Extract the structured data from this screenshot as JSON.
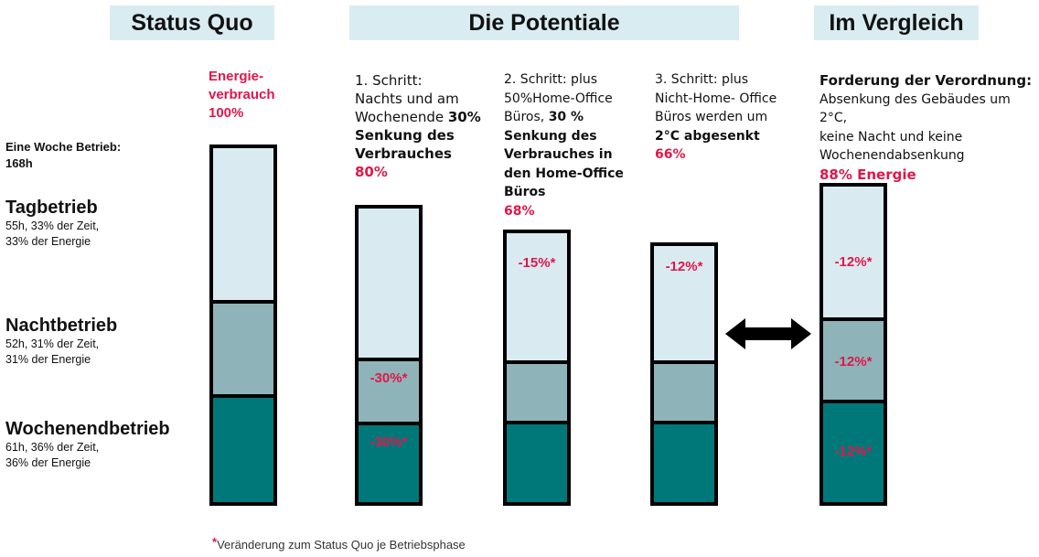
{
  "headers": {
    "status_quo": "Status Quo",
    "potentiale": "Die Potentiale",
    "vergleich": "Im Vergleich"
  },
  "left": {
    "woche_line1": "Eine Woche Betrieb:",
    "woche_line2": "168h",
    "tag_title": "Tagbetrieb",
    "tag_l1": "55h, 33% der Zeit,",
    "tag_l2": "33% der Energie",
    "nacht_title": "Nachtbetrieb",
    "nacht_l1": "52h, 31% der Zeit,",
    "nacht_l2": "31% der Energie",
    "we_title": "Wochenendbetrieb",
    "we_l1": "61h, 36% der Zeit,",
    "we_l2": "36% der Energie"
  },
  "col0": {
    "l1": "Energie-",
    "l2": "verbrauch",
    "l3": "100%"
  },
  "col1": {
    "l1": "1. Schritt:",
    "l2": "Nachts und am",
    "l3a": "Wochenende ",
    "l3b": "30%",
    "l4": "Senkung des",
    "l5": "Verbrauches",
    "l6": "80%"
  },
  "col2": {
    "l1": "2. Schritt: plus",
    "l2": "50%Home-Office",
    "l3a": "Büros, ",
    "l3b": "30 %",
    "l4": "Senkung des",
    "l5": "Verbrauches in",
    "l6": "den Home-Office",
    "l7": "Büros",
    "l8": "68%"
  },
  "col3": {
    "l1": "3. Schritt: plus",
    "l2": "Nicht-Home- Office",
    "l3": "Büros werden um",
    "l4": "2°C abgesenkt",
    "l5": "66%"
  },
  "col4": {
    "l1": "Forderung der Verordnung:",
    "l2": "Absenkung des Gebäudes um 2°C,",
    "l3": "keine Nacht und keine",
    "l4": "Wochenendabsenkung",
    "l5": "88% Energie"
  },
  "bars": {
    "b1_nacht": "-30%*",
    "b1_we": "-30%*",
    "b2_tag": "-15%*",
    "b3_tag": "-12%*",
    "b4_tag": "-12%*",
    "b4_nacht": "-12%*",
    "b4_we": "-12%*"
  },
  "footnote": {
    "star": "*",
    "text": "Veränderung zum Status Quo je Betriebsphase"
  },
  "colors": {
    "tag": "#daeaf1",
    "nacht": "#8eb4ba",
    "wochenende": "#00787a",
    "accent": "#e0174a",
    "header_bg": "#d9ecf2"
  }
}
